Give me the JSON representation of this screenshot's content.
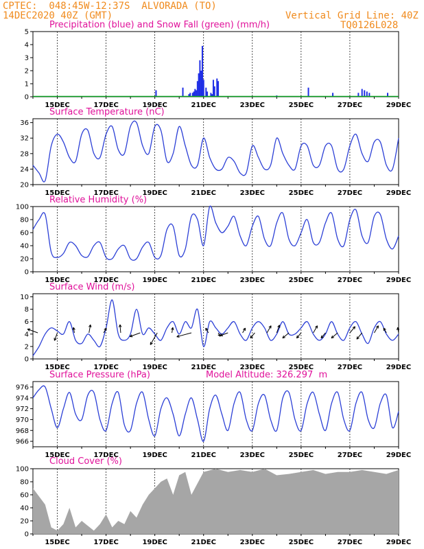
{
  "header": {
    "line1": "CPTEC:  048:45W-12:37S  ALVORADA (TO)",
    "line2": "14DEC2020 40Z (GMT)",
    "grid_note": "Vertical Grid Line: 40Z",
    "code": "TQ0126L028"
  },
  "colors": {
    "header": "#f08a1c",
    "title": "#e0119a",
    "line": "#2b3fd6",
    "precip": "#1f2ee6",
    "snow": "#0aa020",
    "cloud": "#a6a6a6",
    "arrow": "#000000"
  },
  "x_axis": {
    "ticks": [
      "15DEC",
      "17DEC",
      "19DEC",
      "21DEC",
      "23DEC",
      "25DEC",
      "27DEC",
      "29DEC"
    ],
    "tick_days": [
      15,
      17,
      19,
      21,
      23,
      25,
      27,
      29
    ],
    "range_days": [
      14,
      29
    ]
  },
  "chart_data": [
    {
      "id": "precip",
      "type": "bar",
      "title": "Precipitation (blue) and Snow Fall (green) (mm/h)",
      "ylim": [
        0,
        5
      ],
      "yticks": [
        0,
        1,
        2,
        3,
        4,
        5
      ],
      "series": [
        {
          "name": "Precipitation",
          "x": [
            19.05,
            20.95,
            20.9,
            20.15,
            20.4,
            20.45,
            20.55,
            20.6,
            20.65,
            20.7,
            20.75,
            20.8,
            20.85,
            21.0,
            21.1,
            21.15,
            21.3,
            21.35,
            21.4,
            21.45,
            21.55,
            21.6,
            24.0,
            25.3,
            26.3,
            27.35,
            27.5,
            27.6,
            27.7,
            27.8,
            28.55
          ],
          "values": [
            0.5,
            3.9,
            2.0,
            0.7,
            0.2,
            0.3,
            0.3,
            0.4,
            0.6,
            0.5,
            1.2,
            1.8,
            2.8,
            1.3,
            0.7,
            0.4,
            0.3,
            0.2,
            1.3,
            0.8,
            1.4,
            1.2,
            0.1,
            0.7,
            0.3,
            0.3,
            0.6,
            0.5,
            0.4,
            0.3,
            0.3
          ]
        },
        {
          "name": "Snow Fall",
          "x": [
            14,
            29
          ],
          "values": [
            0,
            0
          ]
        }
      ]
    },
    {
      "id": "temperature",
      "type": "line",
      "title": "Surface Temperature (nC)",
      "ylim": [
        20,
        37
      ],
      "yticks": [
        20,
        24,
        28,
        32,
        36
      ],
      "x": [
        14,
        14.25,
        14.5,
        14.75,
        15,
        15.25,
        15.5,
        15.75,
        16,
        16.25,
        16.5,
        16.75,
        17,
        17.25,
        17.5,
        17.75,
        18,
        18.25,
        18.5,
        18.75,
        19,
        19.25,
        19.5,
        19.75,
        20,
        20.25,
        20.5,
        20.75,
        21,
        21.25,
        21.5,
        21.75,
        22,
        22.25,
        22.5,
        22.75,
        23,
        23.25,
        23.5,
        23.75,
        24,
        24.25,
        24.5,
        24.75,
        25,
        25.25,
        25.5,
        25.75,
        26,
        26.25,
        26.5,
        26.75,
        27,
        27.25,
        27.5,
        27.75,
        28,
        28.25,
        28.5,
        28.75,
        29
      ],
      "values": [
        25,
        23,
        21,
        30,
        33,
        31,
        27,
        26,
        33,
        34,
        28,
        27,
        33,
        35,
        29,
        28,
        35,
        36,
        30,
        28,
        35,
        34,
        26,
        28,
        35,
        30,
        25,
        25,
        32,
        27,
        24,
        24,
        27,
        26,
        23,
        23,
        30,
        27,
        24,
        25,
        32,
        28,
        25,
        24,
        30,
        30,
        25,
        25,
        30,
        30,
        24,
        24,
        30,
        33,
        28,
        26,
        31,
        31,
        25,
        24,
        32
      ]
    },
    {
      "id": "humidity",
      "type": "line",
      "title": "Relative Humidity (%)",
      "ylim": [
        0,
        100
      ],
      "yticks": [
        0,
        20,
        40,
        60,
        80,
        100
      ],
      "x": [
        14,
        14.25,
        14.5,
        14.75,
        15,
        15.25,
        15.5,
        15.75,
        16,
        16.25,
        16.5,
        16.75,
        17,
        17.25,
        17.5,
        17.75,
        18,
        18.25,
        18.5,
        18.75,
        19,
        19.25,
        19.5,
        19.75,
        20,
        20.25,
        20.5,
        20.75,
        21,
        21.25,
        21.5,
        21.75,
        22,
        22.25,
        22.5,
        22.75,
        23,
        23.25,
        23.5,
        23.75,
        24,
        24.25,
        24.5,
        24.75,
        25,
        25.25,
        25.5,
        25.75,
        26,
        26.25,
        26.5,
        26.75,
        27,
        27.25,
        27.5,
        27.75,
        28,
        28.25,
        28.5,
        28.75,
        29
      ],
      "values": [
        65,
        80,
        88,
        30,
        22,
        28,
        45,
        40,
        25,
        23,
        40,
        45,
        22,
        20,
        35,
        40,
        20,
        20,
        38,
        45,
        22,
        25,
        65,
        70,
        25,
        35,
        85,
        80,
        40,
        100,
        75,
        60,
        70,
        85,
        55,
        40,
        70,
        85,
        50,
        40,
        75,
        90,
        50,
        40,
        60,
        80,
        45,
        45,
        75,
        90,
        50,
        40,
        80,
        95,
        55,
        45,
        85,
        88,
        50,
        35,
        55
      ]
    },
    {
      "id": "wind",
      "type": "line",
      "title": "Surface Wind (m/s)",
      "ylim": [
        0,
        10.5
      ],
      "yticks": [
        0,
        2,
        4,
        6,
        8,
        10
      ],
      "x": [
        14,
        14.25,
        14.5,
        14.75,
        15,
        15.25,
        15.5,
        15.75,
        16,
        16.25,
        16.5,
        16.75,
        17,
        17.25,
        17.5,
        17.75,
        18,
        18.25,
        18.5,
        18.75,
        19,
        19.25,
        19.5,
        19.75,
        20,
        20.25,
        20.5,
        20.75,
        21,
        21.25,
        21.5,
        21.75,
        22,
        22.25,
        22.5,
        22.75,
        23,
        23.25,
        23.5,
        23.75,
        24,
        24.25,
        24.5,
        24.75,
        25,
        25.25,
        25.5,
        25.75,
        26,
        26.25,
        26.5,
        26.75,
        27,
        27.25,
        27.5,
        27.75,
        28,
        28.25,
        28.5,
        28.75,
        29
      ],
      "values": [
        0.5,
        2,
        4,
        5,
        4.5,
        4,
        6,
        3,
        2.5,
        4,
        3,
        2,
        5,
        9.5,
        4,
        3,
        4,
        8,
        4,
        5,
        4,
        3,
        5,
        6,
        4,
        6,
        5,
        8,
        2,
        6,
        5,
        4,
        5,
        6,
        4,
        3,
        5,
        6,
        5,
        3,
        4,
        6,
        4,
        4,
        5,
        6,
        4,
        3,
        4,
        6,
        4,
        3,
        5,
        6,
        4,
        2.5,
        5,
        6,
        4,
        3,
        4
      ],
      "arrows": {
        "x": [
          14.2,
          15.0,
          15.7,
          16.3,
          16.9,
          17.6,
          18.4,
          19.1,
          19.7,
          20.5,
          21.2,
          21.6,
          22.0,
          22.6,
          23.1,
          23.6,
          24.0,
          24.5,
          25.0,
          25.5,
          26.0,
          26.5,
          27.0,
          27.5,
          28.0,
          28.5,
          29.0
        ],
        "angle_deg": [
          160,
          250,
          100,
          80,
          60,
          95,
          200,
          240,
          80,
          195,
          120,
          300,
          200,
          60,
          230,
          60,
          70,
          220,
          230,
          60,
          230,
          220,
          50,
          230,
          60,
          120,
          100
        ],
        "speed": [
          4,
          3,
          2,
          3,
          2,
          3,
          4,
          5,
          2,
          6,
          2,
          1.5,
          3,
          2,
          2.5,
          3,
          3,
          3,
          2.5,
          3,
          2.5,
          3,
          3,
          3,
          3,
          2,
          2
        ]
      }
    },
    {
      "id": "pressure",
      "type": "line",
      "title": "Surface Pressure (hPa)",
      "annotation": "Model Altitude: 326.297  m",
      "ylim": [
        965,
        977
      ],
      "yticks": [
        966,
        968,
        970,
        972,
        974,
        976
      ],
      "x": [
        14,
        14.25,
        14.5,
        14.75,
        15,
        15.25,
        15.5,
        15.75,
        16,
        16.25,
        16.5,
        16.75,
        17,
        17.25,
        17.5,
        17.75,
        18,
        18.25,
        18.5,
        18.75,
        19,
        19.25,
        19.5,
        19.75,
        20,
        20.25,
        20.5,
        20.75,
        21,
        21.25,
        21.5,
        21.75,
        22,
        22.25,
        22.5,
        22.75,
        23,
        23.25,
        23.5,
        23.75,
        24,
        24.25,
        24.5,
        24.75,
        25,
        25.25,
        25.5,
        25.75,
        26,
        26.25,
        26.5,
        26.75,
        27,
        27.25,
        27.5,
        27.75,
        28,
        28.25,
        28.5,
        28.75,
        29
      ],
      "values": [
        974,
        975.5,
        976,
        972,
        968.5,
        972,
        975,
        971,
        970,
        974.5,
        975,
        970,
        968,
        973,
        975,
        969,
        968,
        973,
        975,
        970,
        967,
        972,
        974,
        971,
        967,
        971,
        974,
        970,
        966,
        972,
        974.5,
        971,
        968,
        973,
        975,
        970,
        968,
        973,
        974.5,
        970,
        968,
        974,
        975,
        970,
        968,
        973,
        975,
        971,
        968,
        973,
        975,
        970,
        968,
        973,
        975,
        970,
        968.5,
        973,
        974.5,
        968.5,
        971.5
      ]
    },
    {
      "id": "cloud",
      "type": "area",
      "title": "Cloud Cover (%)",
      "ylim": [
        0,
        100
      ],
      "yticks": [
        0,
        20,
        40,
        60,
        80,
        100
      ],
      "x": [
        14,
        14.5,
        14.75,
        15,
        15.25,
        15.5,
        15.75,
        16,
        16.5,
        16.75,
        17,
        17.25,
        17.5,
        17.75,
        18,
        18.25,
        18.5,
        18.75,
        19,
        19.25,
        19.5,
        19.75,
        20,
        20.25,
        20.5,
        21,
        21.5,
        22,
        22.5,
        23,
        23.5,
        24,
        24.5,
        25,
        25.5,
        26,
        26.5,
        27,
        27.5,
        28,
        28.5,
        29
      ],
      "values": [
        70,
        45,
        10,
        5,
        15,
        40,
        10,
        20,
        5,
        15,
        30,
        10,
        20,
        15,
        35,
        25,
        45,
        60,
        70,
        80,
        85,
        60,
        90,
        95,
        60,
        95,
        100,
        95,
        98,
        95,
        100,
        90,
        92,
        95,
        98,
        92,
        95,
        95,
        98,
        95,
        92,
        98
      ]
    }
  ]
}
